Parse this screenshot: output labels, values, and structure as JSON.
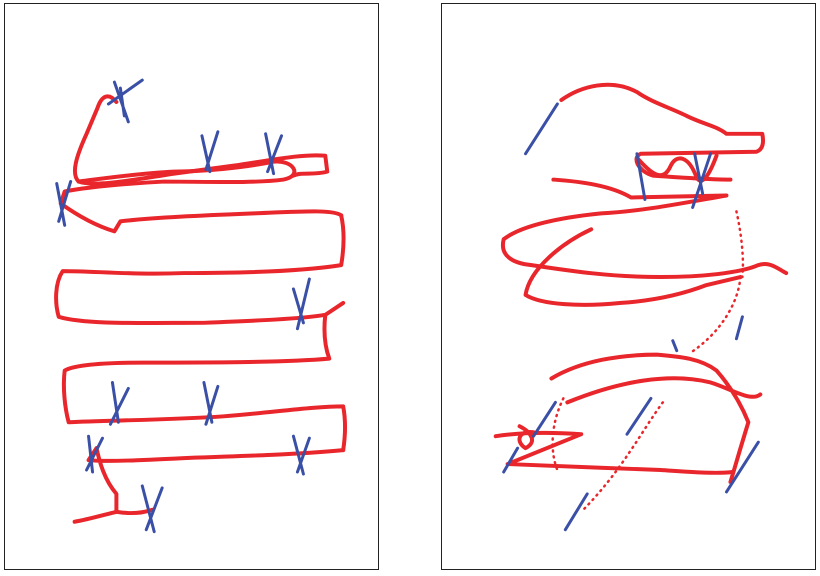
{
  "figure": {
    "panels": [
      {
        "id": "left",
        "trajectory_color": "#e8262b",
        "marker_color": "#3a4fa6"
      },
      {
        "id": "right",
        "trajectory_color": "#e8262b",
        "marker_color": "#3a4fa6"
      }
    ]
  }
}
